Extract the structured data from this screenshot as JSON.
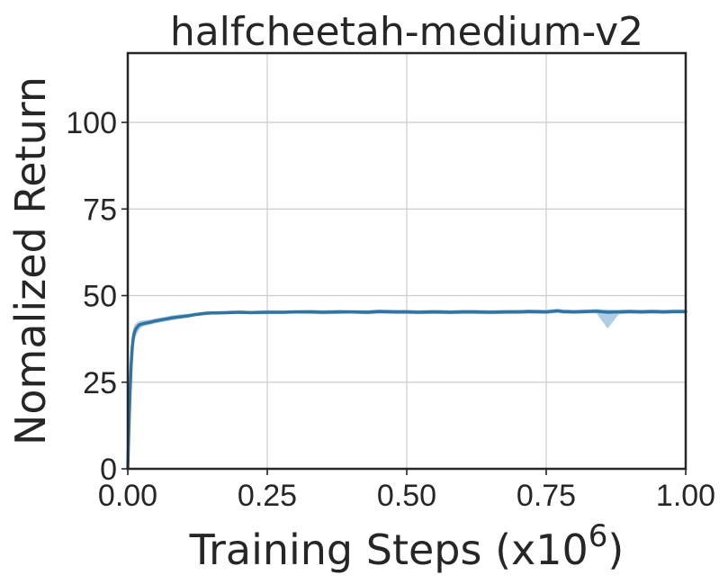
{
  "chart_data": {
    "type": "line",
    "title": "halfcheetah-medium-v2",
    "xlabel": "Training Steps (x10",
    "xlabel_exponent": "6",
    "xlabel_close": ")",
    "ylabel": "Nomalized Return",
    "xlim": [
      0,
      1.0
    ],
    "ylim": [
      0,
      120
    ],
    "grid": true,
    "xticks": [
      0.0,
      0.25,
      0.5,
      0.75,
      1.0
    ],
    "xtick_labels": [
      "0.00",
      "0.25",
      "0.50",
      "0.75",
      "1.00"
    ],
    "yticks": [
      0,
      25,
      50,
      75,
      100
    ],
    "ytick_labels": [
      "0",
      "25",
      "50",
      "75",
      "100"
    ],
    "colors": {
      "line": "#3274a1",
      "band": "#8fb8d9"
    },
    "series": [
      {
        "x": [
          0.0,
          0.002,
          0.004,
          0.006,
          0.008,
          0.01,
          0.012,
          0.015,
          0.02,
          0.025,
          0.03,
          0.04,
          0.05,
          0.06,
          0.07,
          0.08,
          0.09,
          0.1,
          0.11,
          0.12,
          0.13,
          0.14,
          0.15,
          0.16,
          0.18,
          0.2,
          0.22,
          0.25,
          0.28,
          0.3,
          0.33,
          0.35,
          0.38,
          0.4,
          0.43,
          0.45,
          0.48,
          0.5,
          0.52,
          0.55,
          0.58,
          0.6,
          0.62,
          0.65,
          0.68,
          0.7,
          0.72,
          0.75,
          0.77,
          0.78,
          0.8,
          0.82,
          0.84,
          0.86,
          0.88,
          0.9,
          0.92,
          0.94,
          0.96,
          0.98,
          1.0
        ],
        "y": [
          0,
          12,
          22,
          30,
          35,
          38,
          39.5,
          40.5,
          41.5,
          41.8,
          42.0,
          42.3,
          42.7,
          43.0,
          43.3,
          43.6,
          43.8,
          44.0,
          44.2,
          44.5,
          44.7,
          44.9,
          45.0,
          45.0,
          45.1,
          45.2,
          45.1,
          45.2,
          45.2,
          45.3,
          45.3,
          45.2,
          45.3,
          45.3,
          45.2,
          45.4,
          45.3,
          45.3,
          45.2,
          45.3,
          45.2,
          45.3,
          45.3,
          45.2,
          45.3,
          45.3,
          45.4,
          45.3,
          45.6,
          45.4,
          45.3,
          45.4,
          45.5,
          45.2,
          45.3,
          45.4,
          45.3,
          45.4,
          45.3,
          45.4,
          45.4
        ],
        "lower": [
          0,
          6,
          16,
          26,
          32,
          35,
          37,
          38.5,
          40.0,
          40.8,
          41.2,
          41.6,
          42.0,
          42.3,
          42.6,
          42.9,
          43.2,
          43.4,
          43.7,
          44.0,
          44.2,
          44.4,
          44.5,
          44.5,
          44.6,
          44.7,
          44.6,
          44.6,
          44.7,
          44.8,
          44.7,
          44.6,
          44.7,
          44.8,
          44.6,
          44.8,
          44.7,
          44.7,
          44.6,
          44.7,
          44.6,
          44.7,
          44.7,
          44.6,
          44.7,
          44.7,
          44.8,
          44.7,
          45.0,
          44.8,
          44.7,
          44.8,
          44.9,
          40.5,
          44.6,
          44.8,
          44.7,
          44.8,
          44.7,
          44.8,
          44.8
        ],
        "upper": [
          0,
          18,
          28,
          34,
          38,
          40.5,
          41.5,
          42.0,
          42.6,
          42.8,
          42.9,
          43.1,
          43.4,
          43.7,
          44.0,
          44.3,
          44.5,
          44.7,
          44.8,
          45.0,
          45.2,
          45.4,
          45.5,
          45.5,
          45.6,
          45.7,
          45.6,
          45.8,
          45.7,
          45.8,
          45.9,
          45.8,
          45.9,
          45.8,
          45.8,
          46.0,
          45.9,
          45.9,
          45.8,
          45.9,
          45.8,
          45.9,
          45.9,
          45.8,
          45.9,
          45.9,
          46.0,
          45.9,
          46.2,
          46.0,
          45.9,
          46.0,
          46.1,
          46.0,
          45.9,
          46.0,
          45.9,
          46.0,
          45.9,
          46.0,
          46.0
        ]
      }
    ]
  }
}
